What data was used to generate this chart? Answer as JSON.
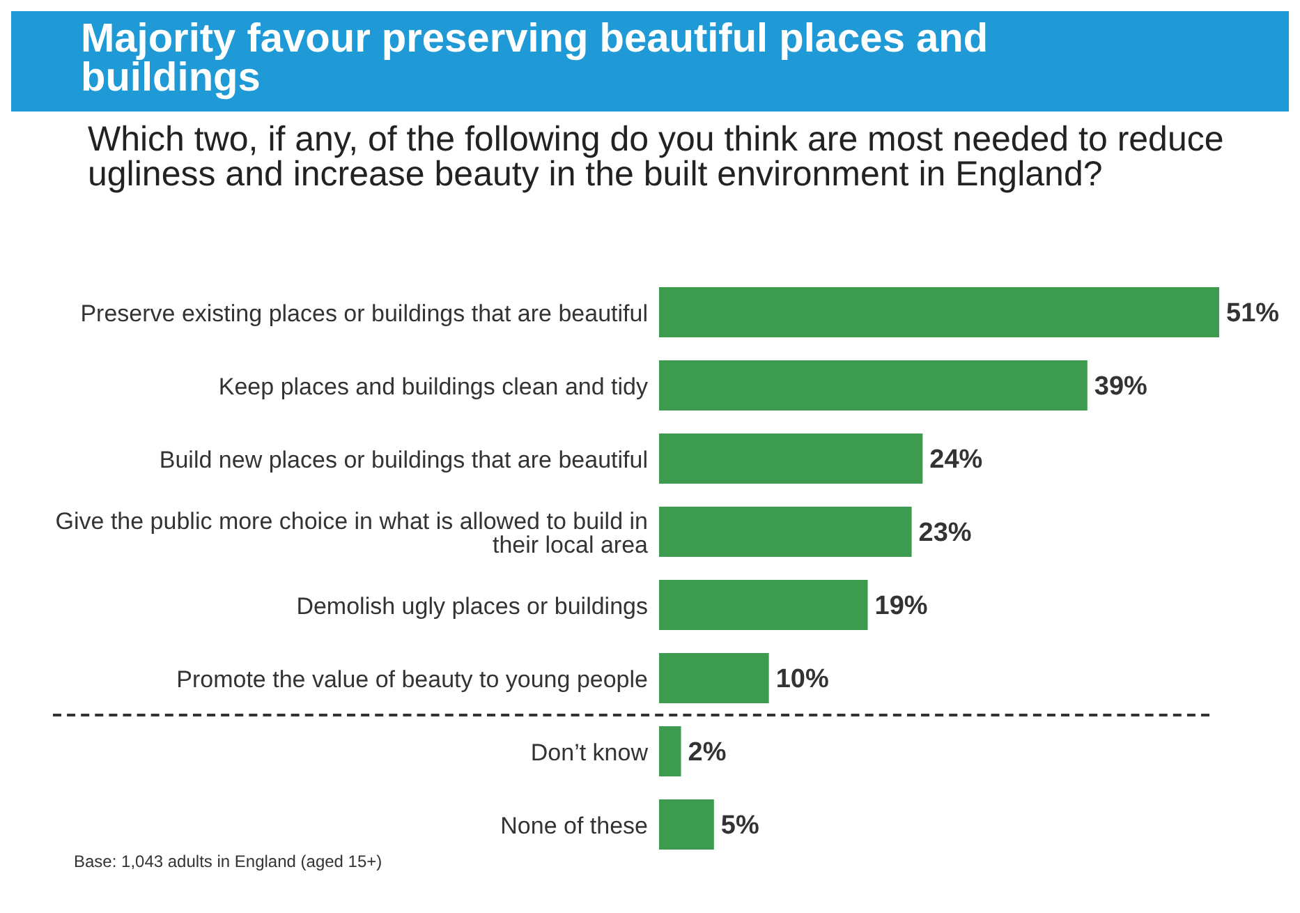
{
  "chart_data": {
    "type": "bar",
    "orientation": "horizontal",
    "title": "Majority favour preserving beautiful places and buildings",
    "subtitle": "Which two, if any, of the following do you think are most needed to reduce ugliness and increase beauty in the built environment in England?",
    "categories": [
      "Preserve existing places or buildings that are beautiful",
      "Keep places and buildings clean and tidy",
      "Build new places or buildings that are beautiful",
      "Give the public more choice in what is allowed to build in their local area",
      "Demolish ugly places or buildings",
      "Promote the value of beauty to young people",
      "Don’t know",
      "None of these"
    ],
    "values": [
      51,
      39,
      24,
      23,
      19,
      10,
      2,
      5
    ],
    "color": "#3d9b4f",
    "value_labels": [
      "51%",
      "39%",
      "24%",
      "23%",
      "19%",
      "10%",
      "2%",
      "5%"
    ],
    "annotations": [
      "Base: 1,043 adults in England (aged 15+)"
    ]
  }
}
